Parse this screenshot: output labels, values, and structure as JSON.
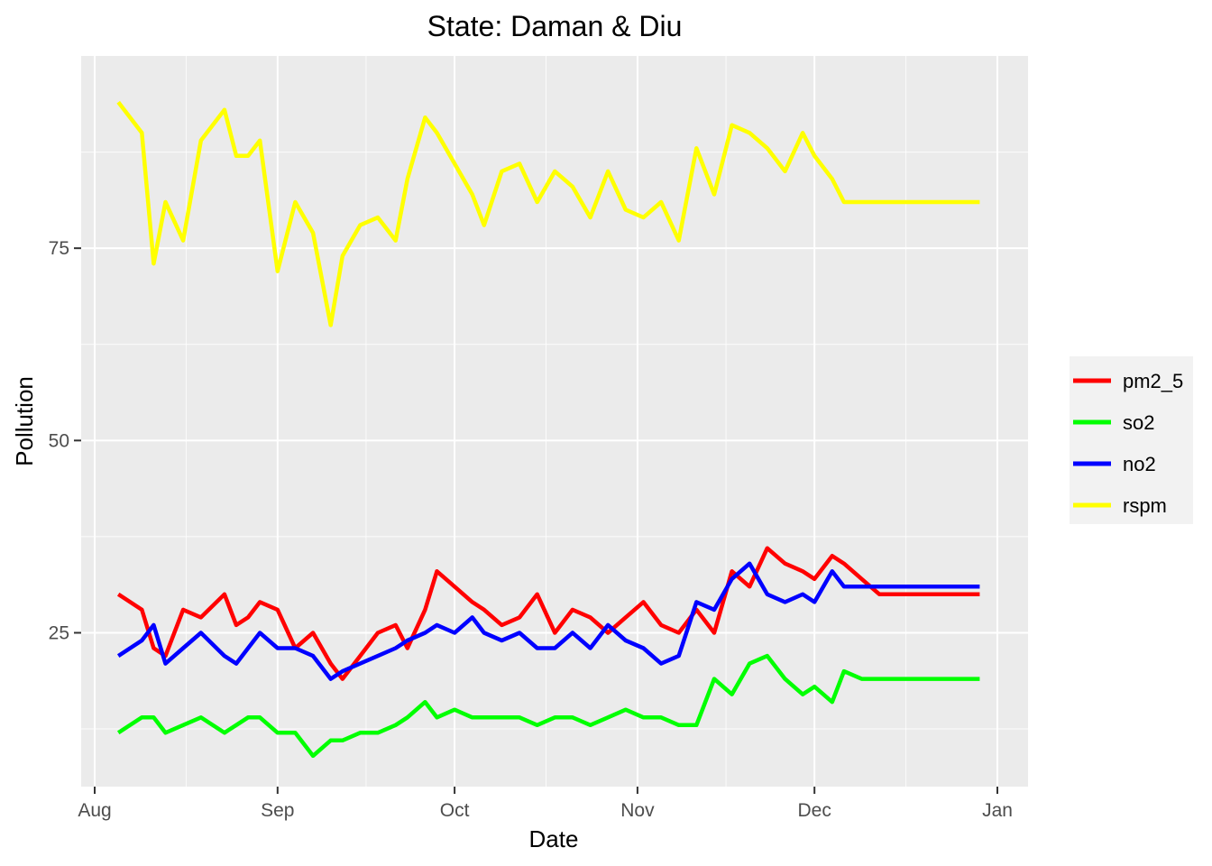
{
  "chart_data": {
    "type": "line",
    "title": "State: Daman & Diu",
    "xlabel": "Date",
    "ylabel": "Pollution",
    "x_ticks": [
      "Aug",
      "Sep",
      "Oct",
      "Nov",
      "Dec",
      "Jan"
    ],
    "y_ticks": [
      25,
      50,
      75
    ],
    "ylim": [
      5,
      100
    ],
    "grid": true,
    "legend_position": "right",
    "x": [
      "Aug 05",
      "Aug 09",
      "Aug 11",
      "Aug 13",
      "Aug 16",
      "Aug 19",
      "Aug 23",
      "Aug 25",
      "Aug 27",
      "Aug 29",
      "Sep 01",
      "Sep 04",
      "Sep 07",
      "Sep 10",
      "Sep 12",
      "Sep 15",
      "Sep 18",
      "Sep 21",
      "Sep 23",
      "Sep 26",
      "Sep 28",
      "Oct 01",
      "Oct 04",
      "Oct 06",
      "Oct 09",
      "Oct 12",
      "Oct 15",
      "Oct 18",
      "Oct 21",
      "Oct 24",
      "Oct 27",
      "Oct 30",
      "Nov 02",
      "Nov 05",
      "Nov 08",
      "Nov 11",
      "Nov 14",
      "Nov 17",
      "Nov 20",
      "Nov 23",
      "Nov 26",
      "Nov 29",
      "Dec 01",
      "Dec 04",
      "Dec 06",
      "Dec 09",
      "Dec 12",
      "Dec 16",
      "Dec 19",
      "Dec 22",
      "Dec 25",
      "Dec 27",
      "Dec 29"
    ],
    "series": [
      {
        "name": "pm2_5",
        "color": "#ff0000",
        "values": [
          30,
          28,
          23,
          22,
          28,
          27,
          30,
          26,
          27,
          29,
          28,
          23,
          25,
          21,
          19,
          22,
          25,
          26,
          23,
          28,
          33,
          31,
          29,
          28,
          26,
          27,
          30,
          25,
          28,
          27,
          25,
          27,
          29,
          26,
          25,
          28,
          25,
          33,
          31,
          36,
          34,
          33,
          32,
          35,
          34,
          32,
          30,
          30,
          30,
          30,
          30,
          30,
          30
        ]
      },
      {
        "name": "so2",
        "color": "#00ff00",
        "values": [
          12,
          14,
          14,
          12,
          13,
          14,
          12,
          13,
          14,
          14,
          12,
          12,
          9,
          11,
          11,
          12,
          12,
          13,
          14,
          16,
          14,
          15,
          14,
          14,
          14,
          14,
          13,
          14,
          14,
          13,
          14,
          15,
          14,
          14,
          13,
          13,
          19,
          17,
          21,
          22,
          19,
          17,
          18,
          16,
          20,
          19,
          19,
          19,
          19,
          19,
          19,
          19,
          19
        ]
      },
      {
        "name": "no2",
        "color": "#0000ff",
        "values": [
          22,
          24,
          26,
          21,
          23,
          25,
          22,
          21,
          23,
          25,
          23,
          23,
          22,
          19,
          20,
          21,
          22,
          23,
          24,
          25,
          26,
          25,
          27,
          25,
          24,
          25,
          23,
          23,
          25,
          23,
          26,
          24,
          23,
          21,
          22,
          29,
          28,
          32,
          34,
          30,
          29,
          30,
          29,
          33,
          31,
          31,
          31,
          31,
          31,
          31,
          31,
          31,
          31
        ]
      },
      {
        "name": "rspm",
        "color": "#ffff00",
        "values": [
          94,
          90,
          73,
          81,
          76,
          89,
          93,
          87,
          87,
          89,
          72,
          81,
          77,
          65,
          74,
          78,
          79,
          76,
          84,
          92,
          90,
          86,
          82,
          78,
          85,
          86,
          81,
          85,
          83,
          79,
          85,
          80,
          79,
          81,
          76,
          88,
          82,
          91,
          90,
          88,
          85,
          90,
          87,
          84,
          81,
          81,
          81,
          81,
          81,
          81,
          81,
          81,
          81
        ]
      }
    ]
  }
}
